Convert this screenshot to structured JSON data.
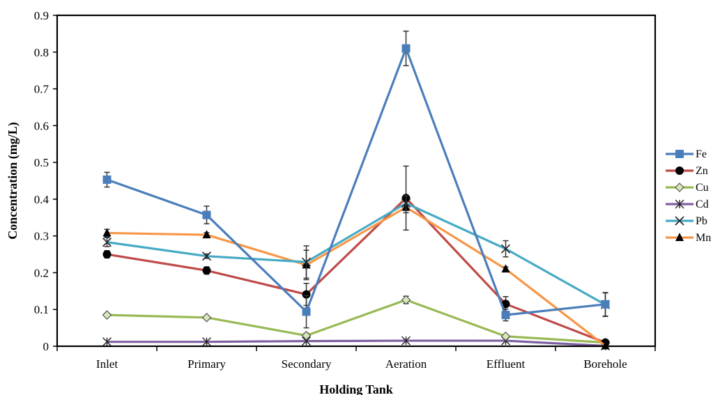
{
  "chart_data": {
    "type": "line",
    "xlabel": "Holding Tank",
    "ylabel": "Concentration (mg/L)",
    "categories": [
      "Inlet",
      "Primary",
      "Secondary",
      "Aeration",
      "Effluent",
      "Borehole"
    ],
    "ylim": [
      0,
      0.9
    ],
    "yticks": [
      "0",
      "0.1",
      "0.2",
      "0.3",
      "0.4",
      "0.5",
      "0.6",
      "0.7",
      "0.8",
      "0.9"
    ],
    "grid": false,
    "legend_position": "right",
    "series": [
      {
        "name": "Fe",
        "color": "#4a7ebb",
        "marker": "square",
        "values": [
          0.453,
          0.357,
          0.094,
          0.81,
          0.085,
          0.114
        ],
        "errors": [
          0.02,
          0.024,
          0.044,
          0.047,
          0.016,
          0.032
        ]
      },
      {
        "name": "Zn",
        "color": "#be4b48",
        "marker": "circle",
        "values": [
          0.25,
          0.206,
          0.141,
          0.403,
          0.115,
          0.01
        ],
        "errors": [
          0.01,
          0.01,
          0.03,
          0.087,
          0.02,
          0.004
        ]
      },
      {
        "name": "Cu",
        "color": "#98b954",
        "marker": "diamond",
        "values": [
          0.085,
          0.078,
          0.029,
          0.126,
          0.027,
          0.01
        ],
        "errors": [
          0.004,
          0.004,
          0.006,
          0.01,
          0.004,
          0.003
        ]
      },
      {
        "name": "Cd",
        "color": "#7d60a0",
        "marker": "star",
        "values": [
          0.012,
          0.012,
          0.014,
          0.015,
          0.015,
          0.001
        ],
        "errors": [
          0.001,
          0.001,
          0.001,
          0.001,
          0.001,
          0.001
        ]
      },
      {
        "name": "Pb",
        "color": "#46aac5",
        "marker": "x",
        "values": [
          0.283,
          0.245,
          0.229,
          0.389,
          0.265,
          0.113
        ],
        "errors": [
          0.012,
          0.006,
          0.044,
          0.02,
          0.022,
          0.032
        ]
      },
      {
        "name": "Mn",
        "color": "#f79646",
        "marker": "triangle",
        "values": [
          0.308,
          0.303,
          0.221,
          0.378,
          0.21,
          0.001
        ],
        "errors": [
          0.01,
          0.006,
          0.04,
          0.015,
          0.006,
          0.002
        ]
      }
    ]
  }
}
